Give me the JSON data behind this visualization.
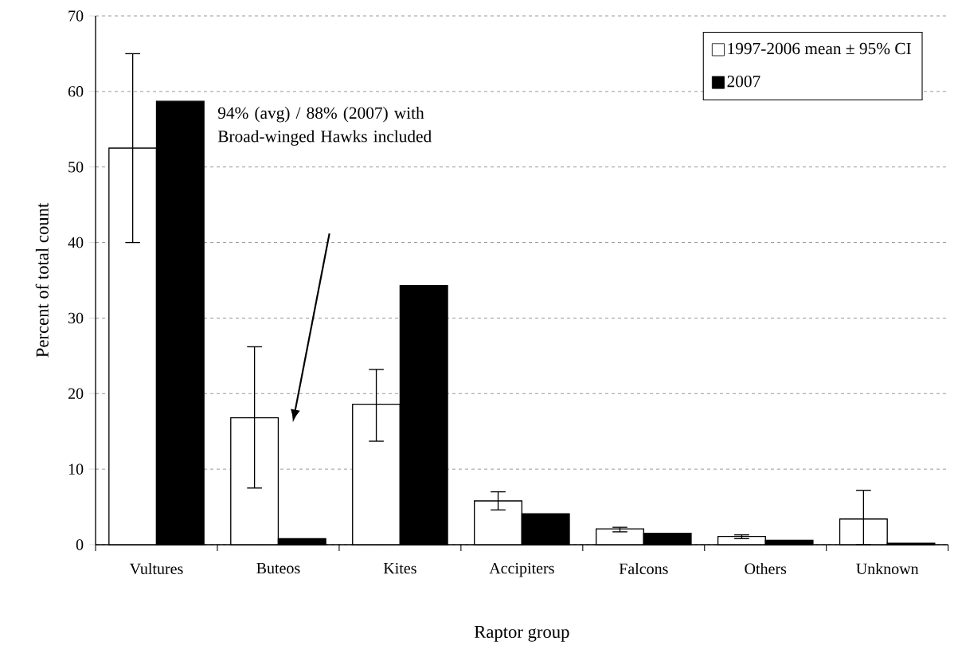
{
  "chart_data": {
    "type": "bar",
    "xlabel": "Raptor group",
    "ylabel": "Percent of total count",
    "categories": [
      "Vultures",
      "Buteos",
      "Kites",
      "Accipiters",
      "Falcons",
      "Others",
      "Unknown"
    ],
    "series": [
      {
        "name": "1997-2006 mean ± 95% CI",
        "color": "#ffffff",
        "values": [
          52.5,
          16.8,
          18.6,
          5.8,
          2.1,
          1.1,
          3.4
        ],
        "errors": [
          [
            40,
            65
          ],
          [
            7.5,
            26.2
          ],
          [
            13.7,
            23.2
          ],
          [
            4.6,
            7.0
          ],
          [
            1.7,
            2.3
          ],
          [
            0.8,
            1.3
          ],
          [
            0,
            7.2
          ]
        ]
      },
      {
        "name": "2007",
        "color": "#000000",
        "values": [
          58.7,
          0.8,
          34.3,
          4.1,
          1.5,
          0.6,
          0.2
        ]
      }
    ],
    "ylim": [
      0,
      70
    ],
    "yticks": [
      0,
      10,
      20,
      30,
      40,
      50,
      60,
      70
    ],
    "grid": "y",
    "legend": "top right",
    "annotations": [
      "94% (avg) / 88% (2007) with Broad-winged Hawks included"
    ]
  }
}
